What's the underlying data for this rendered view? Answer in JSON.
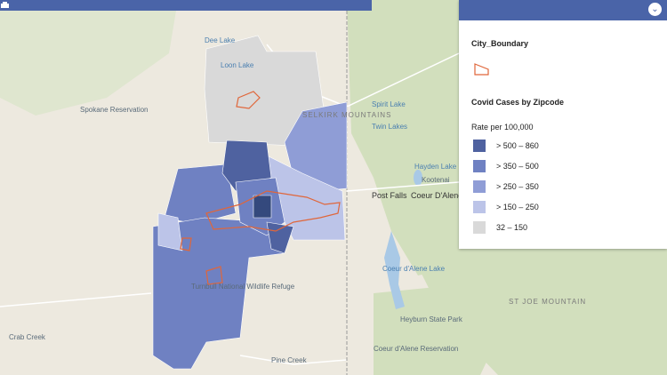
{
  "legend": {
    "boundary_title": "City_Boundary",
    "cases_title": "Covid Cases by Zipcode",
    "cases_subtitle": "Rate per 100,000",
    "classes": [
      {
        "label": "> 500 – 860",
        "color": "#4f62a0"
      },
      {
        "label": "> 350 – 500",
        "color": "#6f81c2"
      },
      {
        "label": "> 250 – 350",
        "color": "#8f9dd6"
      },
      {
        "label": "> 150 – 250",
        "color": "#bcc4e8"
      },
      {
        "label": "32 – 150",
        "color": "#d9d9d9"
      }
    ]
  },
  "map_labels": [
    "Spokane Reservation",
    "Loon Lake",
    "Dee Lake",
    "Post Falls",
    "Coeur D'Alene",
    "Hayden Lake",
    "Spirit Lake",
    "Twin Lakes",
    "Kootenai",
    "Coeur d'Alene Lake",
    "Crab Creek",
    "Coeur d'Alene Reservation",
    "Heyburn State Park",
    "ST JOE MOUNTAIN",
    "SELKIRK MOUNTAINS",
    "Turnbull National Wildlife Refuge",
    "Pine Creek"
  ]
}
